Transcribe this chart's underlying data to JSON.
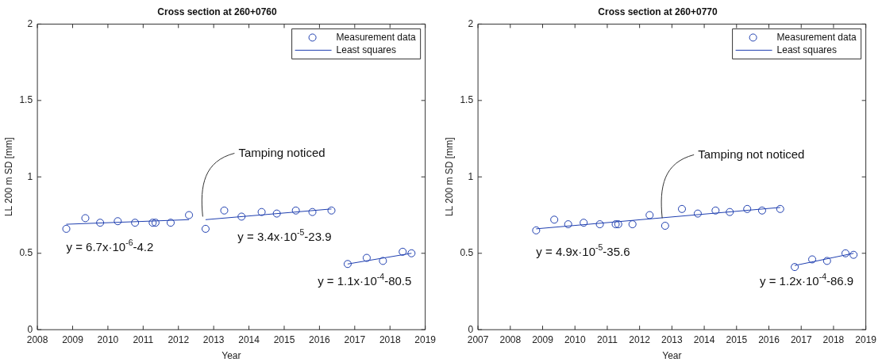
{
  "chart_data": [
    {
      "type": "scatter",
      "title": "Cross section at 260+0760",
      "xlabel": "Year",
      "ylabel": "LL 200 m SD [mm]",
      "xlim": [
        2008,
        2019
      ],
      "xticks": [
        2008,
        2009,
        2010,
        2011,
        2012,
        2013,
        2014,
        2015,
        2016,
        2017,
        2018,
        2019
      ],
      "ylim": [
        0,
        2
      ],
      "yticks": [
        0,
        0.5,
        1,
        1.5,
        2
      ],
      "legend": "top right",
      "series": [
        {
          "name": "Measurement data",
          "marker": "circle",
          "color": "#1f3fb0",
          "x": [
            2008.82,
            2009.36,
            2009.78,
            2010.28,
            2010.77,
            2011.27,
            2011.35,
            2011.78,
            2012.3,
            2012.77,
            2013.3,
            2013.79,
            2014.36,
            2014.79,
            2015.33,
            2015.8,
            2016.34,
            2016.8,
            2017.34,
            2017.8,
            2018.36,
            2018.61
          ],
          "values": [
            0.66,
            0.73,
            0.7,
            0.71,
            0.7,
            0.7,
            0.7,
            0.7,
            0.75,
            0.66,
            0.78,
            0.74,
            0.77,
            0.76,
            0.78,
            0.77,
            0.78,
            0.43,
            0.47,
            0.45,
            0.51,
            0.5
          ]
        },
        {
          "name": "Least squares",
          "type": "line",
          "color": "#1f3fb0",
          "x": [
            2008.82,
            2012.3
          ],
          "values": [
            0.69,
            0.72
          ]
        },
        {
          "type": "line",
          "color": "#1f3fb0",
          "x": [
            2012.77,
            2016.34
          ],
          "values": [
            0.72,
            0.79
          ]
        },
        {
          "type": "line",
          "color": "#1f3fb0",
          "x": [
            2016.8,
            2018.61
          ],
          "values": [
            0.43,
            0.5
          ]
        }
      ],
      "annotations": [
        "y = 6.7x·10$^{-6}$-4.2",
        "y = 3.4x·10$^{-5}$-23.9",
        "y = 1.1x·10$^{-4}$-80.5",
        {
          "text": "Tamping noticed",
          "x": 2012.69,
          "y": 0.74
        }
      ]
    },
    {
      "type": "scatter",
      "title": "Cross section at 260+0770",
      "xlabel": "Year",
      "ylabel": "LL 200 m SD [mm]",
      "xlim": [
        2007,
        2019
      ],
      "xticks": [
        2007,
        2008,
        2009,
        2010,
        2011,
        2012,
        2013,
        2014,
        2015,
        2016,
        2017,
        2018,
        2019
      ],
      "ylim": [
        0,
        2
      ],
      "yticks": [
        0,
        0.5,
        1,
        1.5,
        2
      ],
      "legend": "top right",
      "series": [
        {
          "name": "Measurement data",
          "marker": "circle",
          "color": "#1f3fb0",
          "x": [
            2008.8,
            2009.36,
            2009.79,
            2010.27,
            2010.77,
            2011.26,
            2011.34,
            2011.78,
            2012.31,
            2012.79,
            2013.31,
            2013.8,
            2014.35,
            2014.79,
            2015.33,
            2015.79,
            2016.35,
            2016.8,
            2017.34,
            2017.8,
            2018.37,
            2018.62
          ],
          "values": [
            0.65,
            0.72,
            0.69,
            0.7,
            0.69,
            0.69,
            0.69,
            0.69,
            0.75,
            0.68,
            0.79,
            0.76,
            0.78,
            0.77,
            0.79,
            0.78,
            0.79,
            0.41,
            0.46,
            0.45,
            0.5,
            0.49
          ]
        },
        {
          "name": "Least squares",
          "type": "line",
          "color": "#1f3fb0",
          "x": [
            2008.8,
            2016.35
          ],
          "values": [
            0.66,
            0.8
          ]
        },
        {
          "type": "line",
          "color": "#1f3fb0",
          "x": [
            2016.8,
            2018.62
          ],
          "values": [
            0.42,
            0.5
          ]
        }
      ],
      "annotations": [
        "y = 4.9x·10$^{-5}$-35.6",
        "y = 1.2x·10$^{-4}$-86.9",
        {
          "text": "Tamping not noticed",
          "x": 2012.7,
          "y": 0.73
        }
      ]
    }
  ]
}
